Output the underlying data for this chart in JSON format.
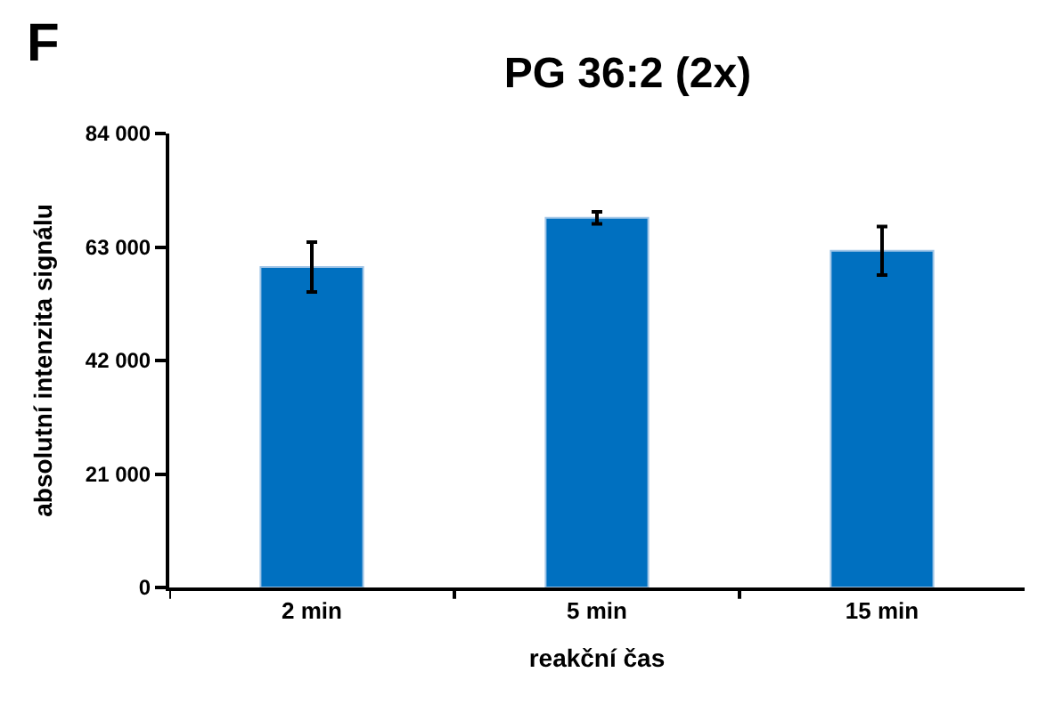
{
  "chart_data": {
    "type": "bar",
    "title": "PG 36:2 (2x)",
    "xlabel": "reakční čas",
    "ylabel": "absolutní intenzita signálu",
    "annotations": [
      "F"
    ],
    "categories": [
      "2 min",
      "5 min",
      "15 min"
    ],
    "values": [
      59300,
      68400,
      62300
    ],
    "errors": [
      4600,
      1100,
      4500
    ],
    "color": "#0070c0",
    "ylim": [
      0,
      84000
    ],
    "yticks": [
      {
        "value": 0,
        "label": "0"
      },
      {
        "value": 21000,
        "label": "21 000"
      },
      {
        "value": 42000,
        "label": "42 000"
      },
      {
        "value": 63000,
        "label": "63 000"
      },
      {
        "value": 84000,
        "label": "84 000"
      }
    ]
  }
}
